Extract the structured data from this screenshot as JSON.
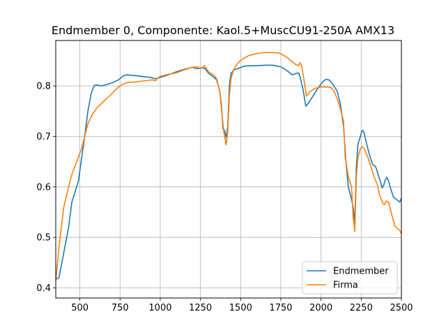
{
  "chart_data": {
    "type": "line",
    "title": "Endmember 0, Componente: Kaol.5+MuscCU91-250A AMX13",
    "xlabel": "",
    "ylabel": "",
    "xlim": [
      350,
      2500
    ],
    "ylim": [
      0.38,
      0.89
    ],
    "xticks": [
      500,
      750,
      1000,
      1250,
      1500,
      1750,
      2000,
      2250,
      2500
    ],
    "yticks": [
      0.4,
      0.5,
      0.6,
      0.7,
      0.8
    ],
    "grid": true,
    "legend_position": "lower-right",
    "series": [
      {
        "name": "Endmember",
        "color": "#1f77b4",
        "points": [
          [
            350,
            0.417
          ],
          [
            370,
            0.42
          ],
          [
            400,
            0.47
          ],
          [
            430,
            0.52
          ],
          [
            450,
            0.57
          ],
          [
            470,
            0.59
          ],
          [
            490,
            0.61
          ],
          [
            510,
            0.655
          ],
          [
            530,
            0.7
          ],
          [
            550,
            0.75
          ],
          [
            570,
            0.785
          ],
          [
            590,
            0.801
          ],
          [
            610,
            0.802
          ],
          [
            630,
            0.8
          ],
          [
            660,
            0.802
          ],
          [
            700,
            0.806
          ],
          [
            740,
            0.812
          ],
          [
            770,
            0.82
          ],
          [
            790,
            0.822
          ],
          [
            820,
            0.821
          ],
          [
            860,
            0.82
          ],
          [
            900,
            0.818
          ],
          [
            940,
            0.817
          ],
          [
            970,
            0.814
          ],
          [
            1000,
            0.817
          ],
          [
            1050,
            0.822
          ],
          [
            1100,
            0.828
          ],
          [
            1150,
            0.833
          ],
          [
            1200,
            0.837
          ],
          [
            1230,
            0.834
          ],
          [
            1260,
            0.836
          ],
          [
            1280,
            0.834
          ],
          [
            1300,
            0.825
          ],
          [
            1330,
            0.818
          ],
          [
            1350,
            0.812
          ],
          [
            1370,
            0.79
          ],
          [
            1380,
            0.765
          ],
          [
            1390,
            0.715
          ],
          [
            1400,
            0.712
          ],
          [
            1410,
            0.698
          ],
          [
            1420,
            0.72
          ],
          [
            1430,
            0.8
          ],
          [
            1440,
            0.825
          ],
          [
            1460,
            0.832
          ],
          [
            1490,
            0.835
          ],
          [
            1520,
            0.839
          ],
          [
            1560,
            0.84
          ],
          [
            1600,
            0.84
          ],
          [
            1650,
            0.841
          ],
          [
            1700,
            0.841
          ],
          [
            1750,
            0.838
          ],
          [
            1790,
            0.83
          ],
          [
            1820,
            0.822
          ],
          [
            1850,
            0.825
          ],
          [
            1860,
            0.826
          ],
          [
            1870,
            0.818
          ],
          [
            1890,
            0.79
          ],
          [
            1905,
            0.76
          ],
          [
            1920,
            0.765
          ],
          [
            1950,
            0.78
          ],
          [
            1980,
            0.795
          ],
          [
            2010,
            0.808
          ],
          [
            2030,
            0.813
          ],
          [
            2050,
            0.812
          ],
          [
            2070,
            0.805
          ],
          [
            2100,
            0.79
          ],
          [
            2120,
            0.765
          ],
          [
            2140,
            0.72
          ],
          [
            2155,
            0.65
          ],
          [
            2170,
            0.6
          ],
          [
            2190,
            0.575
          ],
          [
            2200,
            0.56
          ],
          [
            2210,
            0.53
          ],
          [
            2220,
            0.64
          ],
          [
            2230,
            0.685
          ],
          [
            2245,
            0.7
          ],
          [
            2255,
            0.712
          ],
          [
            2265,
            0.71
          ],
          [
            2280,
            0.69
          ],
          [
            2300,
            0.665
          ],
          [
            2320,
            0.645
          ],
          [
            2340,
            0.64
          ],
          [
            2355,
            0.625
          ],
          [
            2370,
            0.61
          ],
          [
            2380,
            0.598
          ],
          [
            2390,
            0.603
          ],
          [
            2400,
            0.614
          ],
          [
            2410,
            0.619
          ],
          [
            2420,
            0.612
          ],
          [
            2430,
            0.6
          ],
          [
            2450,
            0.58
          ],
          [
            2470,
            0.575
          ],
          [
            2490,
            0.57
          ],
          [
            2500,
            0.578
          ]
        ]
      },
      {
        "name": "Firma",
        "color": "#ff7f0e",
        "points": [
          [
            350,
            0.413
          ],
          [
            370,
            0.48
          ],
          [
            400,
            0.56
          ],
          [
            430,
            0.6
          ],
          [
            450,
            0.625
          ],
          [
            480,
            0.65
          ],
          [
            510,
            0.675
          ],
          [
            530,
            0.7
          ],
          [
            550,
            0.725
          ],
          [
            580,
            0.745
          ],
          [
            610,
            0.758
          ],
          [
            650,
            0.77
          ],
          [
            700,
            0.785
          ],
          [
            740,
            0.798
          ],
          [
            770,
            0.804
          ],
          [
            800,
            0.807
          ],
          [
            850,
            0.808
          ],
          [
            900,
            0.81
          ],
          [
            950,
            0.812
          ],
          [
            970,
            0.81
          ],
          [
            985,
            0.816
          ],
          [
            1000,
            0.819
          ],
          [
            1050,
            0.823
          ],
          [
            1100,
            0.826
          ],
          [
            1150,
            0.832
          ],
          [
            1200,
            0.837
          ],
          [
            1230,
            0.838
          ],
          [
            1250,
            0.834
          ],
          [
            1275,
            0.84
          ],
          [
            1300,
            0.828
          ],
          [
            1330,
            0.822
          ],
          [
            1350,
            0.815
          ],
          [
            1370,
            0.79
          ],
          [
            1385,
            0.74
          ],
          [
            1395,
            0.71
          ],
          [
            1410,
            0.683
          ],
          [
            1420,
            0.71
          ],
          [
            1430,
            0.78
          ],
          [
            1440,
            0.815
          ],
          [
            1460,
            0.835
          ],
          [
            1490,
            0.848
          ],
          [
            1520,
            0.855
          ],
          [
            1550,
            0.86
          ],
          [
            1600,
            0.864
          ],
          [
            1650,
            0.866
          ],
          [
            1700,
            0.866
          ],
          [
            1740,
            0.865
          ],
          [
            1770,
            0.86
          ],
          [
            1790,
            0.856
          ],
          [
            1820,
            0.848
          ],
          [
            1840,
            0.843
          ],
          [
            1860,
            0.84
          ],
          [
            1870,
            0.846
          ],
          [
            1880,
            0.84
          ],
          [
            1900,
            0.8
          ],
          [
            1910,
            0.78
          ],
          [
            1930,
            0.788
          ],
          [
            1960,
            0.795
          ],
          [
            2000,
            0.798
          ],
          [
            2030,
            0.798
          ],
          [
            2060,
            0.797
          ],
          [
            2080,
            0.79
          ],
          [
            2100,
            0.775
          ],
          [
            2120,
            0.755
          ],
          [
            2140,
            0.73
          ],
          [
            2150,
            0.66
          ],
          [
            2170,
            0.62
          ],
          [
            2190,
            0.6
          ],
          [
            2200,
            0.54
          ],
          [
            2210,
            0.512
          ],
          [
            2220,
            0.62
          ],
          [
            2230,
            0.66
          ],
          [
            2245,
            0.675
          ],
          [
            2255,
            0.68
          ],
          [
            2270,
            0.675
          ],
          [
            2290,
            0.66
          ],
          [
            2310,
            0.64
          ],
          [
            2330,
            0.62
          ],
          [
            2350,
            0.605
          ],
          [
            2365,
            0.583
          ],
          [
            2375,
            0.575
          ],
          [
            2385,
            0.567
          ],
          [
            2395,
            0.565
          ],
          [
            2405,
            0.572
          ],
          [
            2420,
            0.57
          ],
          [
            2440,
            0.545
          ],
          [
            2460,
            0.522
          ],
          [
            2480,
            0.516
          ],
          [
            2490,
            0.514
          ],
          [
            2500,
            0.507
          ]
        ]
      }
    ]
  }
}
